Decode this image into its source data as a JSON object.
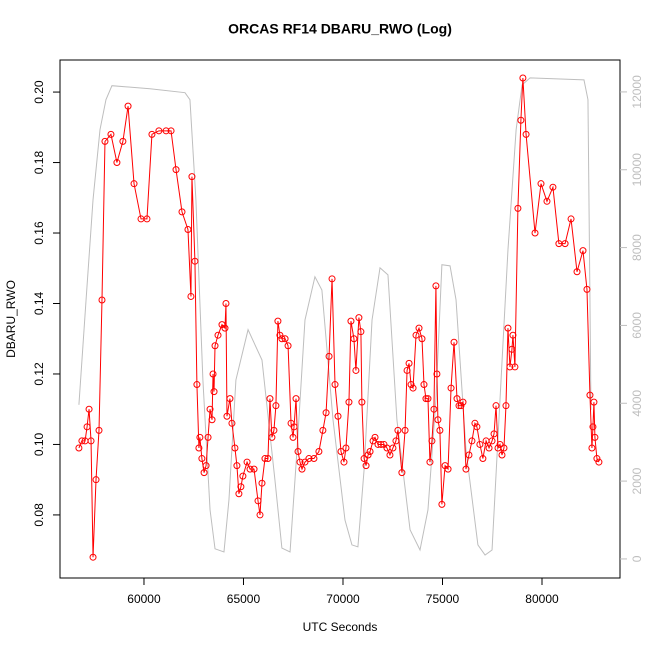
{
  "chart_data": {
    "type": "line",
    "title": "ORCAS RF14 DBARU_RWO (Log)",
    "x_label": "UTC Seconds",
    "y_label": "DBARU_RWO",
    "xlim": [
      55780,
      83920
    ],
    "xticks": [
      60000,
      65000,
      70000,
      75000,
      80000
    ],
    "ylim": [
      0.0621,
      0.2091
    ],
    "yticks": [
      0.08,
      {
        "value": 0.1,
        "label": "0.10"
      },
      0.12,
      0.14,
      0.16,
      0.18,
      {
        "value": 0.2,
        "label": "0.20"
      }
    ],
    "y2lim": [
      -490,
      12820
    ],
    "y2ticks": [
      0,
      2000,
      4000,
      6000,
      8000,
      10000,
      12000
    ],
    "series": [
      {
        "color": "#ff0000",
        "marker": "circle",
        "axis": "y",
        "x": [
          56730,
          56880,
          57040,
          57140,
          57240,
          57340,
          57440,
          57590,
          57740,
          57890,
          58040,
          58340,
          58640,
          58940,
          59200,
          59500,
          59850,
          60150,
          60400,
          60750,
          61110,
          61360,
          61610,
          61910,
          62210,
          62360,
          62410,
          62560,
          62660,
          62760,
          62810,
          62910,
          63020,
          63120,
          63220,
          63320,
          63420,
          63470,
          63520,
          63570,
          63720,
          63920,
          64070,
          64120,
          64170,
          64320,
          64420,
          64570,
          64670,
          64770,
          64870,
          64970,
          65180,
          65330,
          65530,
          65730,
          65830,
          65930,
          66080,
          66230,
          66330,
          66430,
          66530,
          66630,
          66730,
          66830,
          66930,
          67090,
          67240,
          67390,
          67490,
          67540,
          67640,
          67740,
          67840,
          67940,
          68090,
          68290,
          68540,
          68790,
          68990,
          69150,
          69300,
          69450,
          69600,
          69750,
          69900,
          70050,
          70150,
          70300,
          70400,
          70550,
          70650,
          70800,
          70900,
          70950,
          71060,
          71160,
          71260,
          71360,
          71510,
          71610,
          71760,
          71910,
          72060,
          72210,
          72360,
          72510,
          72660,
          72760,
          72960,
          73120,
          73220,
          73320,
          73420,
          73520,
          73670,
          73820,
          73970,
          74070,
          74170,
          74270,
          74370,
          74470,
          74570,
          74670,
          74720,
          74770,
          74870,
          74970,
          75130,
          75280,
          75430,
          75580,
          75730,
          75830,
          75930,
          76030,
          76180,
          76330,
          76480,
          76630,
          76730,
          76880,
          77030,
          77190,
          77340,
          77490,
          77590,
          77690,
          77790,
          77890,
          77990,
          78090,
          78190,
          78290,
          78390,
          78490,
          78540,
          78640,
          78790,
          78940,
          79040,
          79200,
          79650,
          79950,
          80250,
          80550,
          80850,
          81160,
          81460,
          81760,
          82060,
          82260,
          82410,
          82510,
          82560,
          82610,
          82660,
          82760,
          82860
        ],
        "values": [
          0.099,
          0.101,
          0.101,
          0.105,
          0.11,
          0.101,
          0.068,
          0.09,
          0.104,
          0.141,
          0.186,
          0.188,
          0.18,
          0.186,
          0.196,
          0.174,
          0.164,
          0.164,
          0.188,
          0.189,
          0.189,
          0.189,
          0.178,
          0.166,
          0.161,
          0.142,
          0.176,
          0.152,
          0.117,
          0.099,
          0.102,
          0.096,
          0.092,
          0.094,
          0.102,
          0.11,
          0.107,
          0.12,
          0.115,
          0.128,
          0.131,
          0.134,
          0.133,
          0.14,
          0.108,
          0.113,
          0.106,
          0.099,
          0.094,
          0.086,
          0.088,
          0.091,
          0.095,
          0.093,
          0.093,
          0.084,
          0.08,
          0.089,
          0.096,
          0.096,
          0.113,
          0.102,
          0.104,
          0.111,
          0.135,
          0.131,
          0.13,
          0.13,
          0.128,
          0.106,
          0.102,
          0.105,
          0.113,
          0.098,
          0.095,
          0.093,
          0.095,
          0.096,
          0.096,
          0.098,
          0.104,
          0.109,
          0.125,
          0.147,
          0.117,
          0.108,
          0.098,
          0.095,
          0.099,
          0.112,
          0.135,
          0.13,
          0.121,
          0.136,
          0.132,
          0.112,
          0.096,
          0.094,
          0.097,
          0.098,
          0.101,
          0.102,
          0.1,
          0.1,
          0.1,
          0.099,
          0.097,
          0.099,
          0.101,
          0.104,
          0.092,
          0.104,
          0.121,
          0.123,
          0.117,
          0.116,
          0.131,
          0.133,
          0.13,
          0.117,
          0.113,
          0.113,
          0.095,
          0.101,
          0.11,
          0.145,
          0.12,
          0.107,
          0.104,
          0.083,
          0.094,
          0.093,
          0.116,
          0.129,
          0.113,
          0.111,
          0.111,
          0.112,
          0.093,
          0.097,
          0.101,
          0.106,
          0.105,
          0.1,
          0.096,
          0.101,
          0.099,
          0.101,
          0.103,
          0.111,
          0.099,
          0.1,
          0.097,
          0.099,
          0.111,
          0.133,
          0.122,
          0.127,
          0.131,
          0.122,
          0.167,
          0.192,
          0.204,
          0.188,
          0.16,
          0.174,
          0.169,
          0.173,
          0.157,
          0.157,
          0.164,
          0.149,
          0.155,
          0.144,
          0.114,
          0.099,
          0.105,
          0.112,
          0.102,
          0.096,
          0.095
        ]
      },
      {
        "color": "#bebebe",
        "axis": "y2",
        "x": [
          56730,
          57090,
          57440,
          57790,
          58090,
          58390,
          60300,
          62060,
          62310,
          62610,
          62960,
          63320,
          63570,
          64020,
          64270,
          64620,
          65230,
          65930,
          66580,
          66930,
          67340,
          67690,
          68090,
          68590,
          68940,
          69500,
          70100,
          70450,
          70750,
          71060,
          71460,
          71860,
          72260,
          72710,
          73370,
          73870,
          74270,
          74670,
          74970,
          75380,
          75680,
          76180,
          76780,
          77140,
          77490,
          77890,
          78290,
          78700,
          79000,
          79400,
          82110,
          82310,
          82410,
          82460
        ],
        "values": [
          3960,
          6660,
          9230,
          11030,
          11800,
          12160,
          12080,
          11980,
          11800,
          9230,
          4600,
          1260,
          260,
          180,
          1520,
          4600,
          5890,
          5110,
          2030,
          280,
          180,
          2800,
          6140,
          7250,
          6910,
          3570,
          1000,
          360,
          310,
          2290,
          6140,
          7480,
          7300,
          3570,
          750,
          230,
          1260,
          4090,
          7560,
          7530,
          6660,
          2800,
          360,
          100,
          230,
          4090,
          7940,
          11030,
          12180,
          12360,
          12310,
          11800,
          6660,
          3830
        ]
      }
    ]
  }
}
